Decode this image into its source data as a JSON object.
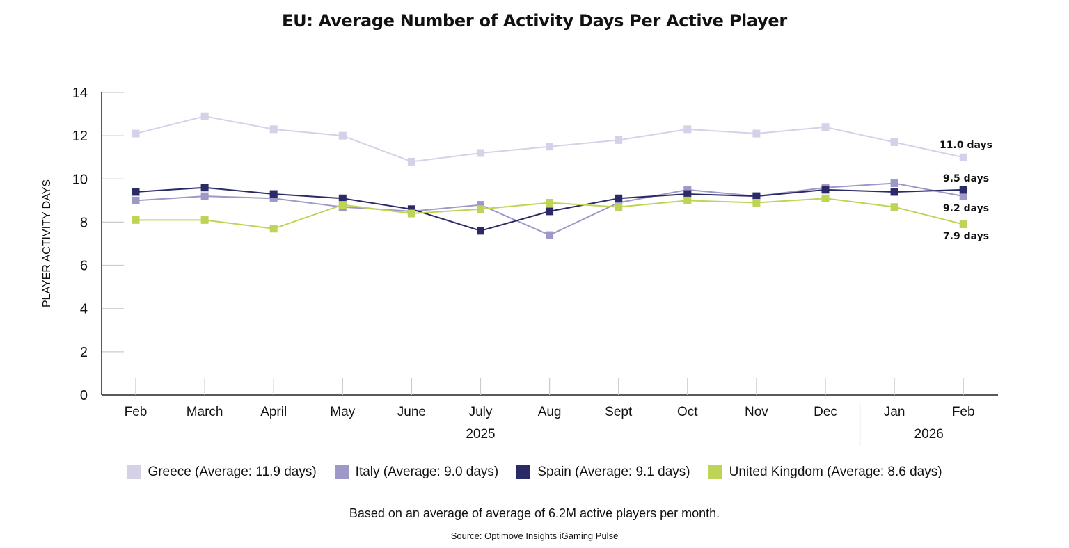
{
  "chart_data": {
    "type": "line",
    "title": "EU: Average Number of Activity Days Per Active Player",
    "ylabel": "PLAYER ACTIVITY DAYS",
    "xlabel": "",
    "ylim": [
      0,
      14
    ],
    "yticks": [
      "0",
      "2",
      "4",
      "6",
      "8",
      "10",
      "12",
      "14"
    ],
    "categories": [
      "Feb",
      "March",
      "April",
      "May",
      "June",
      "July",
      "Aug",
      "Sept",
      "Oct",
      "Nov",
      "Dec",
      "Jan",
      "Feb"
    ],
    "year_groups": [
      {
        "label": "2025",
        "from": 0,
        "to": 10
      },
      {
        "label": "2026",
        "from": 11,
        "to": 12
      }
    ],
    "grid": false,
    "legend_position": "bottom",
    "series": [
      {
        "name": "Greece (Average: 11.9 days)",
        "color": "#d4d1e8",
        "values": [
          12.1,
          12.9,
          12.3,
          12.0,
          10.8,
          11.2,
          11.5,
          11.8,
          12.3,
          12.1,
          12.4,
          11.7,
          11.0
        ],
        "end_label": "11.0 days"
      },
      {
        "name": "Italy (Average: 9.0 days)",
        "color": "#9e98c9",
        "values": [
          9.0,
          9.2,
          9.1,
          8.7,
          8.5,
          8.8,
          7.4,
          8.9,
          9.5,
          9.2,
          9.6,
          9.8,
          9.2
        ],
        "end_label": "9.2 days"
      },
      {
        "name": "Spain (Average: 9.1 days)",
        "color": "#2a2a66",
        "values": [
          9.4,
          9.6,
          9.3,
          9.1,
          8.6,
          7.6,
          8.5,
          9.1,
          9.3,
          9.2,
          9.5,
          9.4,
          9.5
        ],
        "end_label": "9.5 days"
      },
      {
        "name": "United Kingdom (Average: 8.6 days)",
        "color": "#bdd456",
        "values": [
          8.1,
          8.1,
          7.7,
          8.8,
          8.4,
          8.6,
          8.9,
          8.7,
          9.0,
          8.9,
          9.1,
          8.7,
          7.9
        ],
        "end_label": "7.9 days"
      }
    ]
  },
  "footnote": "Based on an average of average of 6.2M active players per month.",
  "source": "Source: Optimove Insights iGaming Pulse"
}
